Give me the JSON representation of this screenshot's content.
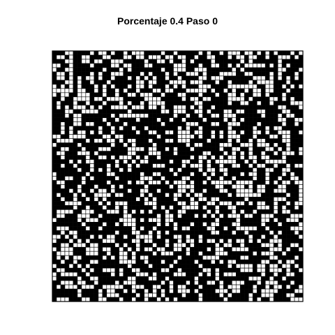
{
  "chart_data": {
    "type": "heatmap",
    "title": "Porcentaje 0.4 Paso 0",
    "xlabel": "",
    "ylabel": "",
    "grid_size": 60,
    "fill_probability": 0.4,
    "seed": 12345,
    "colors": {
      "alive": "#000000",
      "dead": "#ffffff",
      "border": "#000000"
    }
  }
}
